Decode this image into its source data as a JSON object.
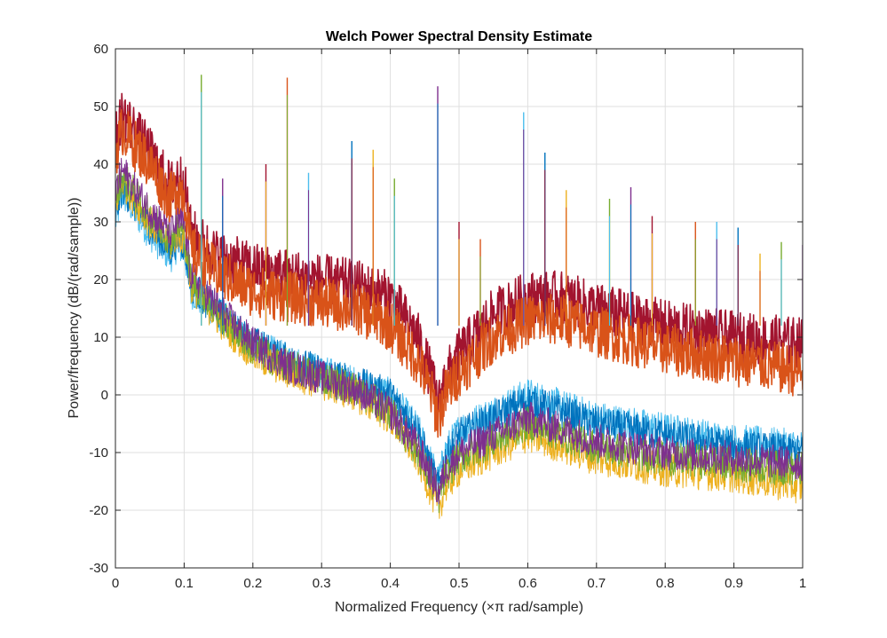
{
  "chart_data": {
    "type": "line",
    "title": "Welch Power Spectral Density Estimate",
    "xlabel": "Normalized Frequency  (×π rad/sample)",
    "ylabel": "Power/frequency (dB/(rad/sample))",
    "xlim": [
      0,
      1
    ],
    "ylim": [
      -30,
      60
    ],
    "xticks": [
      0,
      0.1,
      0.2,
      0.3,
      0.4,
      0.5,
      0.6,
      0.7,
      0.8,
      0.9,
      1
    ],
    "xtick_labels": [
      "0",
      "0.1",
      "0.2",
      "0.3",
      "0.4",
      "0.5",
      "0.6",
      "0.7",
      "0.8",
      "0.9",
      "1"
    ],
    "yticks": [
      -30,
      -20,
      -10,
      0,
      10,
      20,
      30,
      40,
      50,
      60
    ],
    "ytick_labels": [
      "-30",
      "-20",
      "-10",
      "0",
      "10",
      "20",
      "30",
      "40",
      "50",
      "60"
    ],
    "grid": true,
    "colors": [
      "#4DBEEE",
      "#0072BD",
      "#EDB120",
      "#77AC30",
      "#7E2F8E",
      "#A2142F",
      "#D95319"
    ],
    "series": [
      {
        "color": "#4DBEEE",
        "x": [
          0,
          0.01,
          0.05,
          0.08,
          0.09,
          0.1,
          0.11,
          0.15,
          0.2,
          0.25,
          0.3,
          0.35,
          0.4,
          0.44,
          0.46,
          0.47,
          0.48,
          0.5,
          0.55,
          0.6,
          0.65,
          0.7,
          0.8,
          0.9,
          1
        ],
        "y": [
          30,
          35,
          28,
          24,
          26,
          25,
          18,
          14,
          9,
          6,
          4,
          2,
          0,
          -6,
          -12,
          -15,
          -10,
          -6,
          -3,
          0,
          -2,
          -4,
          -6,
          -8,
          -9
        ]
      },
      {
        "color": "#0072BD",
        "x": [
          0,
          0.01,
          0.05,
          0.08,
          0.09,
          0.1,
          0.11,
          0.15,
          0.2,
          0.25,
          0.3,
          0.35,
          0.4,
          0.44,
          0.46,
          0.47,
          0.48,
          0.5,
          0.55,
          0.6,
          0.65,
          0.7,
          0.8,
          0.9,
          1
        ],
        "y": [
          31,
          36,
          29,
          25,
          27,
          26,
          19,
          14,
          9,
          6,
          4,
          2,
          0,
          -6,
          -13,
          -16,
          -11,
          -7,
          -4,
          -1,
          -3,
          -5,
          -7,
          -9,
          -10
        ]
      },
      {
        "color": "#EDB120",
        "x": [
          0,
          0.01,
          0.05,
          0.08,
          0.09,
          0.1,
          0.11,
          0.15,
          0.2,
          0.25,
          0.3,
          0.35,
          0.4,
          0.44,
          0.46,
          0.47,
          0.48,
          0.5,
          0.55,
          0.6,
          0.65,
          0.7,
          0.8,
          0.9,
          1
        ],
        "y": [
          33,
          37,
          30,
          26,
          28,
          27,
          19,
          13,
          7,
          4,
          2,
          0,
          -4,
          -11,
          -17,
          -20,
          -16,
          -13,
          -10,
          -7,
          -9,
          -11,
          -13,
          -14,
          -16
        ]
      },
      {
        "color": "#77AC30",
        "x": [
          0,
          0.01,
          0.05,
          0.08,
          0.09,
          0.1,
          0.11,
          0.15,
          0.2,
          0.25,
          0.3,
          0.35,
          0.4,
          0.44,
          0.46,
          0.47,
          0.48,
          0.5,
          0.55,
          0.6,
          0.65,
          0.7,
          0.8,
          0.9,
          1
        ],
        "y": [
          34,
          38,
          31,
          27,
          29,
          28,
          20,
          14,
          8,
          5,
          3,
          1,
          -3,
          -10,
          -15,
          -18,
          -14,
          -11,
          -8,
          -5,
          -7,
          -9,
          -11,
          -12,
          -13
        ]
      },
      {
        "color": "#7E2F8E",
        "x": [
          0,
          0.01,
          0.05,
          0.08,
          0.09,
          0.1,
          0.11,
          0.15,
          0.2,
          0.25,
          0.3,
          0.35,
          0.4,
          0.44,
          0.46,
          0.47,
          0.48,
          0.5,
          0.55,
          0.6,
          0.65,
          0.7,
          0.8,
          0.9,
          1
        ],
        "y": [
          35,
          39,
          32,
          28,
          30,
          30,
          21,
          15,
          9,
          5,
          3,
          1,
          -3,
          -9,
          -14,
          -17,
          -13,
          -10,
          -7,
          -4,
          -6,
          -8,
          -10,
          -11,
          -12
        ]
      },
      {
        "color": "#A2142F",
        "x": [
          0,
          0.01,
          0.05,
          0.08,
          0.09,
          0.1,
          0.11,
          0.15,
          0.2,
          0.25,
          0.3,
          0.35,
          0.4,
          0.44,
          0.46,
          0.47,
          0.48,
          0.5,
          0.55,
          0.6,
          0.65,
          0.7,
          0.8,
          0.9,
          1
        ],
        "y": [
          44,
          49,
          42,
          36,
          38,
          37,
          28,
          24,
          22,
          21,
          20,
          19,
          17,
          10,
          3,
          -2,
          3,
          7,
          14,
          17,
          17,
          15,
          12,
          10,
          9
        ]
      },
      {
        "color": "#D95319",
        "x": [
          0,
          0.01,
          0.05,
          0.08,
          0.09,
          0.1,
          0.11,
          0.15,
          0.2,
          0.25,
          0.3,
          0.35,
          0.4,
          0.44,
          0.46,
          0.47,
          0.48,
          0.5,
          0.55,
          0.6,
          0.65,
          0.7,
          0.8,
          0.9,
          1
        ],
        "y": [
          42,
          46,
          40,
          34,
          36,
          35,
          25,
          21,
          18,
          17,
          16,
          15,
          12,
          6,
          0,
          -4,
          0,
          4,
          10,
          13,
          13,
          11,
          8,
          6,
          4
        ]
      }
    ],
    "spikes": [
      {
        "x": 0.125,
        "y": 55.5
      },
      {
        "x": 0.156,
        "y": 37.5
      },
      {
        "x": 0.219,
        "y": 40
      },
      {
        "x": 0.25,
        "y": 55
      },
      {
        "x": 0.281,
        "y": 38.5
      },
      {
        "x": 0.344,
        "y": 44
      },
      {
        "x": 0.375,
        "y": 42.5
      },
      {
        "x": 0.406,
        "y": 37.5
      },
      {
        "x": 0.469,
        "y": 53.5
      },
      {
        "x": 0.5,
        "y": 30
      },
      {
        "x": 0.531,
        "y": 27
      },
      {
        "x": 0.594,
        "y": 49
      },
      {
        "x": 0.625,
        "y": 42
      },
      {
        "x": 0.656,
        "y": 35.5
      },
      {
        "x": 0.719,
        "y": 34
      },
      {
        "x": 0.75,
        "y": 36
      },
      {
        "x": 0.781,
        "y": 31
      },
      {
        "x": 0.844,
        "y": 30
      },
      {
        "x": 0.875,
        "y": 30
      },
      {
        "x": 0.906,
        "y": 29
      },
      {
        "x": 0.938,
        "y": 24.5
      },
      {
        "x": 0.969,
        "y": 26.5
      },
      {
        "x": 1.0,
        "y": 26
      }
    ]
  }
}
